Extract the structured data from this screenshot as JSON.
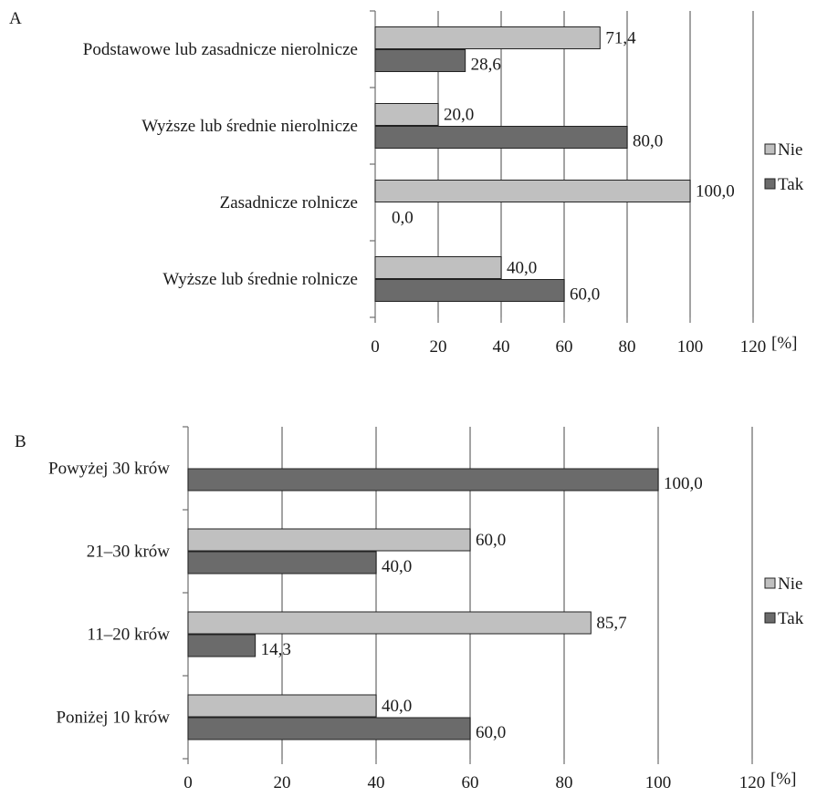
{
  "chart_data": [
    {
      "type": "bar",
      "orientation": "horizontal",
      "panel_label": "A",
      "categories": [
        "Podstawowe lub zasadnicze nierolnicze",
        "Wyższe lub średnie nierolnicze",
        "Zasadnicze rolnicze",
        "Wyższe lub średnie rolnicze"
      ],
      "series": [
        {
          "name": "Nie",
          "color": "#c0c0c0",
          "values": [
            71.4,
            20.0,
            100.0,
            40.0
          ],
          "labels": [
            "71,4",
            "20,0",
            "100,0",
            "40,0"
          ]
        },
        {
          "name": "Tak",
          "color": "#6b6b6b",
          "values": [
            28.6,
            80.0,
            0.0,
            60.0
          ],
          "labels": [
            "28,6",
            "80,0",
            "0,0",
            "60,0"
          ]
        }
      ],
      "x_ticks": [
        "0",
        "20",
        "40",
        "60",
        "80",
        "100",
        "120"
      ],
      "xlim": [
        0,
        120
      ],
      "x_unit": "[%]",
      "grid": true,
      "legend": "right"
    },
    {
      "type": "bar",
      "orientation": "horizontal",
      "panel_label": "B",
      "categories": [
        "Powyżej 30 krów",
        "21–30 krów",
        "11–20 krów",
        "Poniżej 10 krów"
      ],
      "series": [
        {
          "name": "Nie",
          "color": "#c0c0c0",
          "values": [
            0.0,
            60.0,
            85.7,
            40.0
          ],
          "labels": [
            "",
            "60,0",
            "85,7",
            "40,0"
          ]
        },
        {
          "name": "Tak",
          "color": "#6b6b6b",
          "values": [
            100.0,
            40.0,
            14.3,
            60.0
          ],
          "labels": [
            "100,0",
            "40,0",
            "14,3",
            "60,0"
          ]
        }
      ],
      "x_ticks": [
        "0",
        "20",
        "40",
        "60",
        "80",
        "100",
        "120"
      ],
      "xlim": [
        0,
        120
      ],
      "x_unit": "[%]",
      "grid": true,
      "legend": "right"
    }
  ]
}
